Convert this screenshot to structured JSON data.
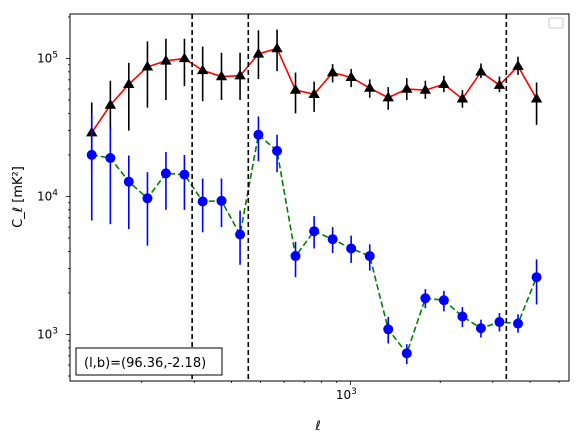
{
  "chart_data": {
    "type": "line",
    "xscale": "log",
    "yscale": "log",
    "xlabel": "ℓ",
    "ylabel": "C_ℓ  [mK²]",
    "xlim": [
      115,
      5400
    ],
    "ylim": [
      460,
      210000
    ],
    "x_tick_labels": [
      {
        "value": 1000,
        "base": "10",
        "exp": "3"
      }
    ],
    "y_tick_labels": [
      {
        "value": 1000,
        "base": "10",
        "exp": "3"
      },
      {
        "value": 10000,
        "base": "10",
        "exp": "4"
      },
      {
        "value": 100000,
        "base": "10",
        "exp": "5"
      }
    ],
    "vlines": [
      295,
      455,
      3330
    ],
    "annotation": "(l,b)=(96.36,-2.18)",
    "legend": {
      "location": "upper right",
      "entries": []
    },
    "series": [
      {
        "style": "red solid line, black triangle markers",
        "line_color": "#ff0000",
        "marker_color": "#000000",
        "errorbar_color": "#000000",
        "marker": "triangle",
        "dashed": false,
        "x": [
          136,
          157,
          181,
          209,
          241,
          278,
          320,
          370,
          427,
          492,
          568,
          655,
          756,
          872,
          1006,
          1161,
          1339,
          1545,
          1783,
          2057,
          2373,
          2738,
          3158,
          3644,
          4205
        ],
        "y": [
          29000,
          46000,
          65000,
          87000,
          96000,
          100000,
          82000,
          74000,
          75000,
          108000,
          118000,
          59000,
          55000,
          79000,
          73000,
          61000,
          52000,
          60000,
          59000,
          65000,
          51000,
          80000,
          64000,
          88000,
          51000
        ],
        "err_low": [
          13500,
          16000,
          35000,
          43000,
          46000,
          37000,
          33000,
          24000,
          25000,
          37000,
          37000,
          19000,
          14000,
          12000,
          11000,
          9000,
          9500,
          10000,
          8000,
          8000,
          7000,
          8000,
          7000,
          12000,
          18000
        ],
        "err_high": [
          19000,
          23000,
          28000,
          46000,
          43000,
          39000,
          40000,
          36000,
          35000,
          52000,
          44000,
          20000,
          13000,
          12000,
          11000,
          9500,
          10000,
          12000,
          10000,
          10000,
          8000,
          12000,
          10000,
          15000,
          16000
        ]
      },
      {
        "style": "green dashed line, blue circle markers",
        "line_color": "#008000",
        "marker_color": "#0000ff",
        "errorbar_color": "#0000ff",
        "marker": "circle",
        "dashed": true,
        "x": [
          136,
          157,
          181,
          209,
          241,
          278,
          320,
          370,
          427,
          492,
          568,
          655,
          756,
          872,
          1006,
          1161,
          1339,
          1545,
          1783,
          2057,
          2373,
          2738,
          3158,
          3644,
          4205
        ],
        "y": [
          20000,
          19000,
          12800,
          9700,
          14700,
          14400,
          9200,
          9300,
          5300,
          28000,
          21400,
          3700,
          5600,
          4900,
          4200,
          3700,
          1090,
          730,
          1830,
          1770,
          1350,
          1110,
          1230,
          1200,
          2600
        ],
        "err_low": [
          13300,
          12700,
          7000,
          5300,
          6700,
          6400,
          3700,
          3300,
          2100,
          10000,
          6400,
          1100,
          1400,
          1000,
          900,
          800,
          230,
          120,
          280,
          300,
          220,
          160,
          180,
          170,
          950
        ],
        "err_high": [
          20000,
          13000,
          7000,
          5300,
          6300,
          5600,
          4300,
          4200,
          2600,
          10000,
          6600,
          1000,
          1600,
          1100,
          1000,
          800,
          250,
          120,
          300,
          300,
          230,
          170,
          200,
          200,
          900
        ]
      }
    ]
  }
}
